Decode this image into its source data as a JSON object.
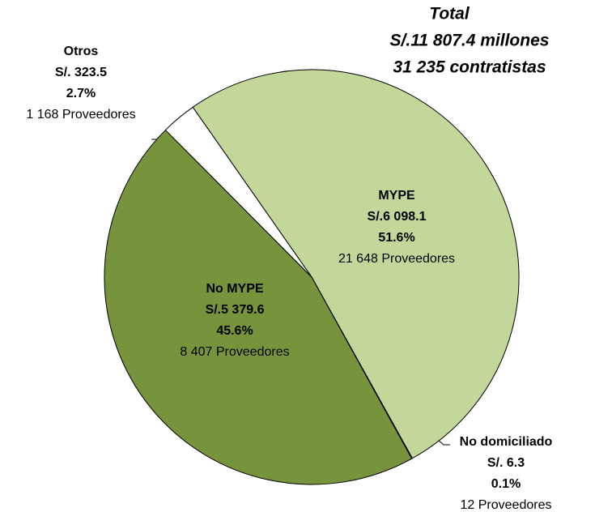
{
  "chart_data": {
    "type": "pie",
    "title": [
      "Total",
      "S/.11 807.4 millones",
      "31 235 contratistas"
    ],
    "categories": [
      "MYPE",
      "No domiciliado",
      "No MYPE",
      "Otros"
    ],
    "values": [
      6098.1,
      6.3,
      5379.6,
      323.5
    ],
    "value_labels": [
      "S/.6 098.1",
      "S/. 6.3",
      "S/.5 379.6",
      "S/. 323.5"
    ],
    "percent_labels": [
      "51.6%",
      "0.1%",
      "45.6%",
      "2.7%"
    ],
    "provider_labels": [
      "21 648 Proveedores",
      "12 Proveedores",
      "8 407 Proveedores",
      "1 168 Proveedores"
    ],
    "colors": [
      "#c4d79b",
      "#3d4f1f",
      "#77933c",
      "#ffffff"
    ]
  }
}
